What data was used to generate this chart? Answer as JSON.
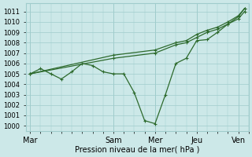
{
  "xlabel": "Pression niveau de la mer( hPa )",
  "background_color": "#cce8e8",
  "grid_color": "#a0cccc",
  "line_color": "#2d6a2d",
  "ylim": [
    999.5,
    1011.8
  ],
  "yticks": [
    1000,
    1001,
    1002,
    1003,
    1004,
    1005,
    1006,
    1007,
    1008,
    1009,
    1010,
    1011
  ],
  "day_labels": [
    "Mar",
    "Sam",
    "Mer",
    "Jeu",
    "Ven"
  ],
  "day_positions": [
    0,
    4,
    6,
    8,
    10
  ],
  "xlim": [
    -0.2,
    10.5
  ],
  "series_jagged": {
    "x": [
      0,
      0.5,
      1.0,
      1.5,
      2.0,
      2.5,
      3.0,
      3.5,
      4.0,
      4.5,
      5.0,
      5.5,
      6.0,
      6.5,
      7.0,
      7.5,
      8.0,
      8.5,
      9.0,
      9.5,
      10.0,
      10.3
    ],
    "y": [
      1005.0,
      1005.5,
      1005.0,
      1004.5,
      1005.2,
      1006.0,
      1005.8,
      1005.2,
      1005.0,
      1005.0,
      1003.2,
      1000.5,
      1000.2,
      1003.0,
      1006.0,
      1006.5,
      1008.2,
      1008.3,
      1009.0,
      1009.8,
      1010.5,
      1011.3
    ]
  },
  "series_trend1": {
    "x": [
      0,
      4,
      6,
      7,
      7.5,
      8.0,
      8.5,
      9.0,
      9.5,
      10.0,
      10.3
    ],
    "y": [
      1005.0,
      1006.5,
      1007.0,
      1007.8,
      1008.0,
      1008.5,
      1009.0,
      1009.3,
      1009.8,
      1010.3,
      1011.0
    ]
  },
  "series_trend2": {
    "x": [
      0,
      4,
      6,
      7,
      7.5,
      8.0,
      8.5,
      9.0,
      9.5,
      10.0,
      10.3
    ],
    "y": [
      1005.0,
      1006.8,
      1007.3,
      1008.0,
      1008.2,
      1008.8,
      1009.2,
      1009.5,
      1010.0,
      1010.6,
      1011.3
    ]
  }
}
